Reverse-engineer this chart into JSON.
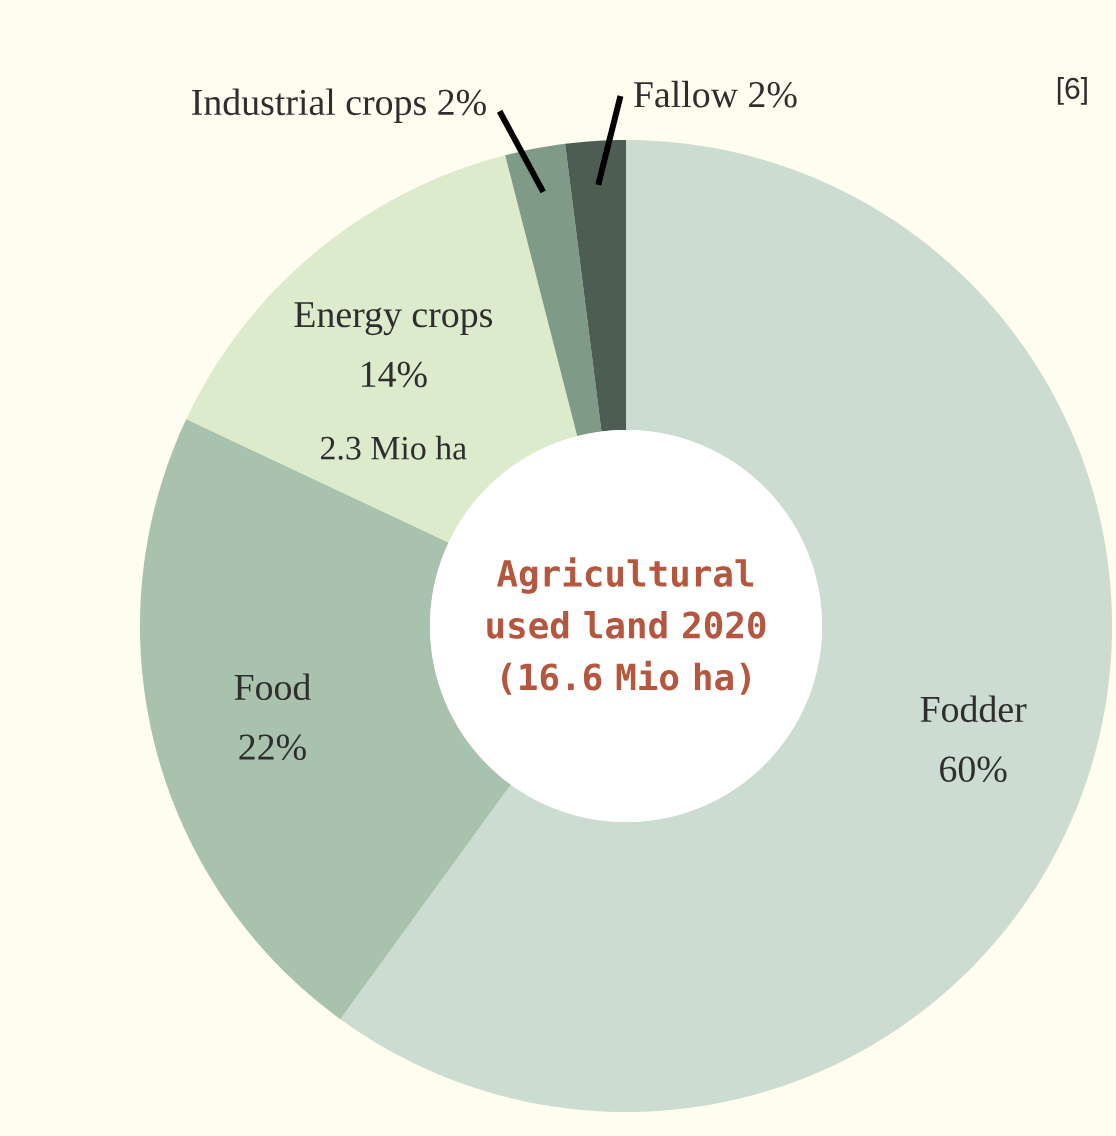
{
  "chart_data": {
    "type": "donut",
    "title": "Agricultural used land 2020 (16.6 Mio ha)",
    "categories": [
      "Fodder",
      "Food",
      "Energy crops",
      "Industrial crops",
      "Fallow"
    ],
    "values": [
      60,
      22,
      14,
      2,
      2
    ],
    "value_labels": [
      "60%",
      "22%",
      "14%",
      "2%",
      "2%"
    ],
    "colors": [
      "#ccdcd0",
      "#a8c2ad",
      "#dcebcb",
      "#7f9a86",
      "#4e5d51"
    ],
    "annotations": [
      {
        "text": "2.3 Mio ha",
        "x": "Energy crops"
      },
      "[6]"
    ]
  }
}
